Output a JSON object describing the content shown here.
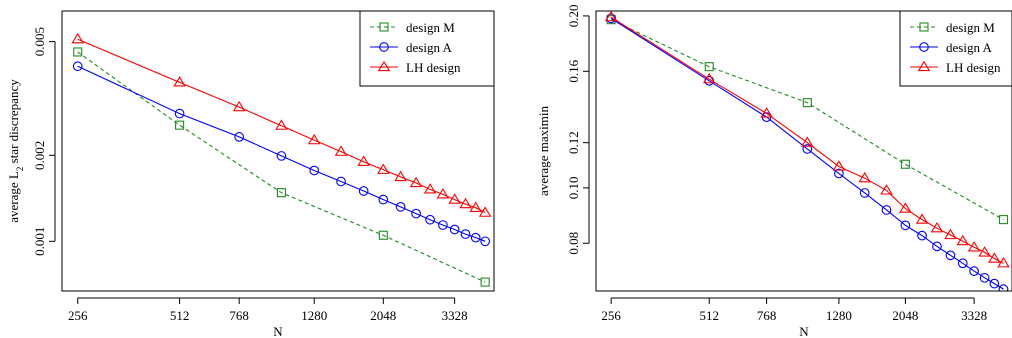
{
  "figure": {
    "background": "#ffffff"
  },
  "chart_data": [
    {
      "type": "line",
      "title": "",
      "xlabel": "N",
      "ylabel_parts": [
        "average L",
        "2",
        " star discrepancy"
      ],
      "x_scale": "log",
      "y_scale": "log",
      "xlim": [
        230,
        4350
      ],
      "ylim": [
        0.00067,
        0.0064
      ],
      "xticks": [
        256,
        512,
        768,
        1280,
        2048,
        3328
      ],
      "xticklabels": [
        "256",
        "512",
        "768",
        "1280",
        "2048",
        "3328"
      ],
      "yticks": [
        0.001,
        0.002,
        0.005
      ],
      "yticklabels": [
        "0.001",
        "0.002",
        "0.005"
      ],
      "legend": {
        "position": "top-right",
        "entries": [
          "design M",
          "design A",
          "LH design"
        ]
      },
      "series": [
        {
          "name": "design M",
          "color": "#228B22",
          "marker": "square",
          "dash": true,
          "x": [
            256,
            512,
            1024,
            2048,
            4096
          ],
          "y": [
            0.0046,
            0.00255,
            0.00148,
            0.00105,
            0.00072
          ]
        },
        {
          "name": "design A",
          "color": "#0000ff",
          "marker": "circle",
          "dash": false,
          "x": [
            256,
            512,
            768,
            1024,
            1280,
            1536,
            1792,
            2048,
            2304,
            2560,
            2816,
            3072,
            3328,
            3584,
            3840,
            4096
          ],
          "y": [
            0.0041,
            0.0028,
            0.00232,
            0.00199,
            0.00177,
            0.00162,
            0.0015,
            0.0014,
            0.00132,
            0.00125,
            0.00119,
            0.00114,
            0.0011,
            0.00106,
            0.00103,
            0.001
          ]
        },
        {
          "name": "LH design",
          "color": "#ff0000",
          "marker": "triangle",
          "dash": false,
          "x": [
            256,
            512,
            768,
            1024,
            1280,
            1536,
            1792,
            2048,
            2304,
            2560,
            2816,
            3072,
            3328,
            3584,
            3840,
            4096
          ],
          "y": [
            0.0051,
            0.0036,
            0.00295,
            0.00254,
            0.00226,
            0.00206,
            0.0019,
            0.00178,
            0.00168,
            0.0016,
            0.00152,
            0.00146,
            0.0014,
            0.00135,
            0.00131,
            0.00126
          ]
        }
      ]
    },
    {
      "type": "line",
      "title": "",
      "xlabel": "N",
      "ylabel": "average maximin",
      "x_scale": "log",
      "y_scale": "log",
      "xlim": [
        230,
        4350
      ],
      "ylim": [
        0.066,
        0.204
      ],
      "xticks": [
        256,
        512,
        768,
        1280,
        2048,
        3328
      ],
      "xticklabels": [
        "256",
        "512",
        "768",
        "1280",
        "2048",
        "3328"
      ],
      "yticks": [
        0.08,
        0.1,
        0.12,
        0.16,
        0.2
      ],
      "yticklabels": [
        "0.08",
        "0.10",
        "0.12",
        "0.16",
        "0.20"
      ],
      "legend": {
        "position": "top-right",
        "entries": [
          "design M",
          "design A",
          "LH design"
        ]
      },
      "series": [
        {
          "name": "design M",
          "color": "#228B22",
          "marker": "square",
          "dash": true,
          "x": [
            256,
            512,
            1024,
            2048,
            4096
          ],
          "y": [
            0.197,
            0.163,
            0.141,
            0.11,
            0.088
          ]
        },
        {
          "name": "design A",
          "color": "#0000ff",
          "marker": "circle",
          "dash": false,
          "x": [
            256,
            512,
            768,
            1024,
            1280,
            1536,
            1792,
            2048,
            2304,
            2560,
            2816,
            3072,
            3328,
            3584,
            3840,
            4096
          ],
          "y": [
            0.198,
            0.154,
            0.133,
            0.117,
            0.106,
            0.098,
            0.0915,
            0.086,
            0.0825,
            0.079,
            0.0762,
            0.0738,
            0.0715,
            0.0696,
            0.068,
            0.0665
          ]
        },
        {
          "name": "LH design",
          "color": "#ff0000",
          "marker": "triangle",
          "dash": false,
          "x": [
            256,
            512,
            768,
            1024,
            1280,
            1536,
            1792,
            2048,
            2304,
            2560,
            2816,
            3072,
            3328,
            3584,
            3840,
            4096
          ],
          "y": [
            0.199,
            0.155,
            0.135,
            0.12,
            0.109,
            0.104,
            0.099,
            0.092,
            0.088,
            0.085,
            0.0827,
            0.0807,
            0.0787,
            0.0771,
            0.0752,
            0.0738
          ]
        }
      ]
    }
  ]
}
